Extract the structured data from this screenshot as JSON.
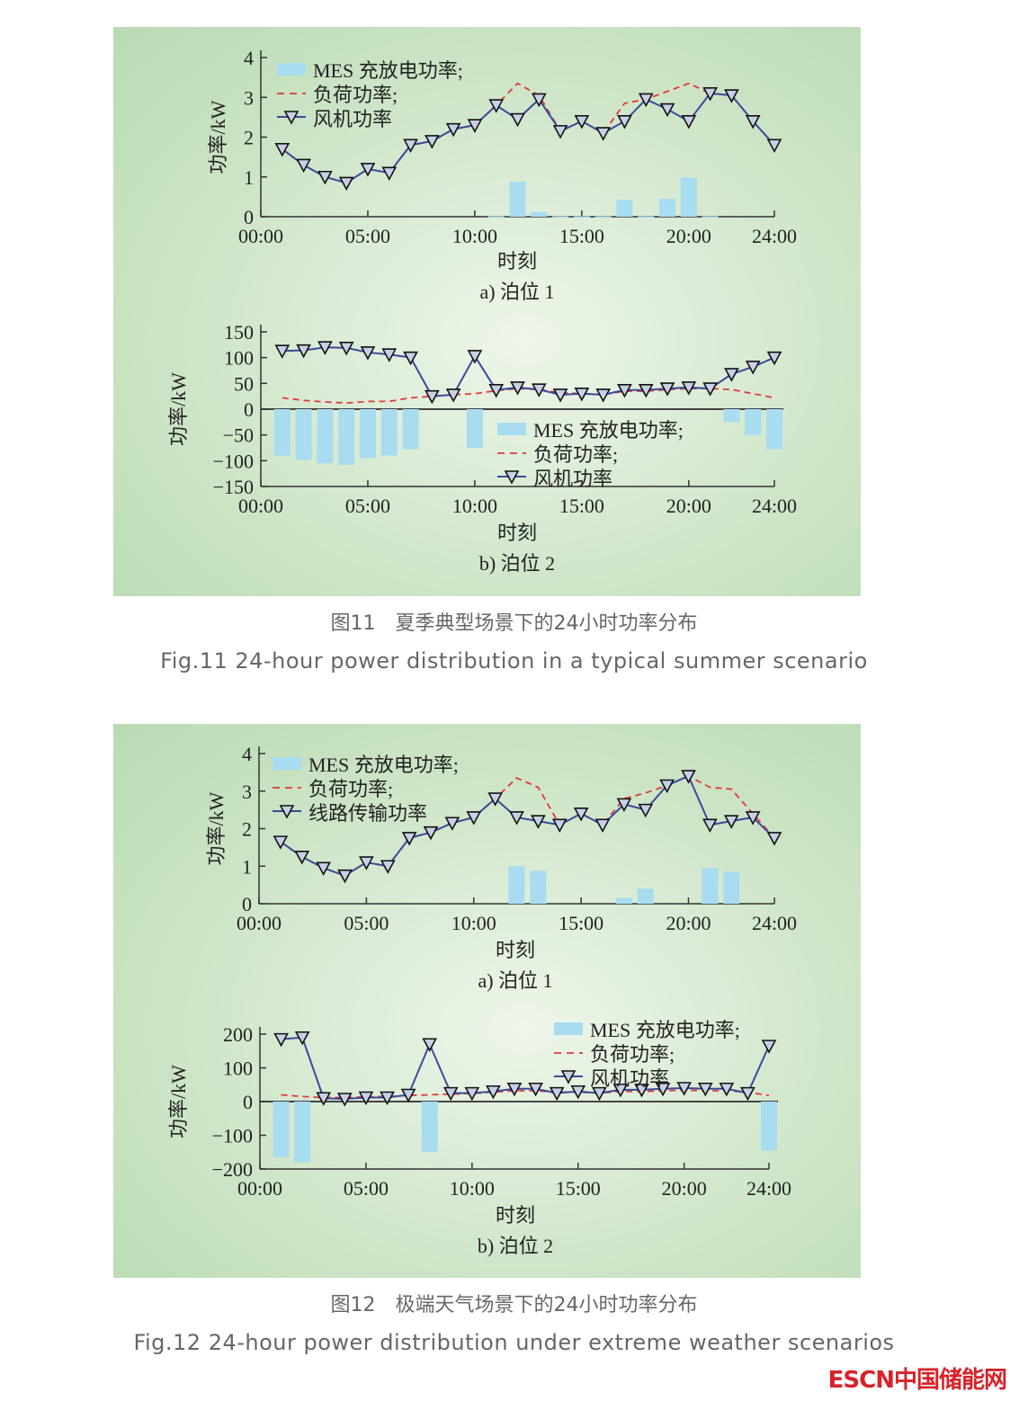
{
  "figures": [
    {
      "caption_cn": "图11　夏季典型场景下的24小时功率分布",
      "caption_en": "Fig.11  24-hour power distribution in a typical summer scenario"
    },
    {
      "caption_cn": "图12　极端天气场景下的24小时功率分布",
      "caption_en": "Fig.12  24-hour power distribution under extreme weather scenarios"
    }
  ],
  "logo": "ESCN中国储能网",
  "colors": {
    "bar": "#a8dcf0",
    "load": "#e03a3a",
    "line": "#3a4a9a",
    "marker_stroke": "#111111"
  },
  "chart_data": [
    {
      "type": "bar+line",
      "subtitle": "a) 泊位 1",
      "xlabel": "时刻",
      "ylabel": "功率/kW",
      "xticks": [
        "00:00",
        "05:00",
        "10:00",
        "15:00",
        "20:00",
        "24:00"
      ],
      "xtick_values": [
        0,
        5,
        10,
        15,
        20,
        24
      ],
      "ylim": [
        0,
        4
      ],
      "yticks": [
        0,
        1,
        2,
        3,
        4
      ],
      "ytick_labels": [
        "0",
        "1",
        "2",
        "3",
        "4"
      ],
      "legend": "top-left",
      "x": [
        1,
        2,
        3,
        4,
        5,
        6,
        7,
        8,
        9,
        10,
        11,
        12,
        13,
        14,
        15,
        16,
        17,
        18,
        19,
        20,
        21,
        22,
        23,
        24
      ],
      "series": [
        {
          "name": "MES 充放电功率;",
          "kind": "bar",
          "values": [
            0,
            0,
            0,
            0,
            0,
            0,
            0,
            0,
            0,
            0,
            0.01,
            0.88,
            0.12,
            0.01,
            0.01,
            0.01,
            0.42,
            0.01,
            0.45,
            0.98,
            0.01,
            0,
            0,
            0
          ]
        },
        {
          "name": "负荷功率;",
          "kind": "dashed",
          "values": [
            1.7,
            1.3,
            1.0,
            0.85,
            1.2,
            1.1,
            1.8,
            1.9,
            2.2,
            2.3,
            2.8,
            3.35,
            3.05,
            2.15,
            2.4,
            2.1,
            2.85,
            2.95,
            3.15,
            3.35,
            3.1,
            3.05,
            2.4,
            1.8
          ]
        },
        {
          "name": "风机功率",
          "kind": "line",
          "values": [
            1.7,
            1.3,
            1.0,
            0.85,
            1.2,
            1.1,
            1.8,
            1.9,
            2.2,
            2.3,
            2.8,
            2.45,
            2.95,
            2.15,
            2.4,
            2.1,
            2.4,
            2.95,
            2.7,
            2.4,
            3.1,
            3.05,
            2.4,
            1.8
          ]
        }
      ]
    },
    {
      "type": "bar+line",
      "subtitle": "b) 泊位 2",
      "xlabel": "时刻",
      "ylabel": "功率/kW",
      "xticks": [
        "00:00",
        "05:00",
        "10:00",
        "15:00",
        "20:00",
        "24:00"
      ],
      "xtick_values": [
        0,
        5,
        10,
        15,
        20,
        24
      ],
      "ylim": [
        -150,
        150
      ],
      "yticks": [
        -150,
        -100,
        -50,
        0,
        50,
        100,
        150
      ],
      "ytick_labels": [
        "−150",
        "−100",
        "−50",
        "0",
        "50",
        "100",
        "150"
      ],
      "legend": "bottom-center",
      "x": [
        1,
        2,
        3,
        4,
        5,
        6,
        7,
        8,
        9,
        10,
        11,
        12,
        13,
        14,
        15,
        16,
        17,
        18,
        19,
        20,
        21,
        22,
        23,
        24
      ],
      "series": [
        {
          "name": "MES 充放电功率;",
          "kind": "bar",
          "values": [
            -90,
            -98,
            -105,
            -108,
            -95,
            -90,
            -78,
            0,
            0,
            -75,
            0,
            0,
            0,
            0,
            0,
            0,
            0,
            0,
            0,
            0,
            0,
            -25,
            -50,
            -78
          ]
        },
        {
          "name": "负荷功率;",
          "kind": "dashed",
          "values": [
            22,
            17,
            14,
            12,
            15,
            15,
            22,
            25,
            28,
            30,
            36,
            40,
            38,
            32,
            30,
            28,
            35,
            35,
            38,
            40,
            40,
            38,
            30,
            22
          ]
        },
        {
          "name": "风机功率",
          "kind": "line",
          "values": [
            113,
            114,
            120,
            119,
            110,
            106,
            100,
            25,
            28,
            103,
            37,
            42,
            38,
            28,
            30,
            28,
            37,
            37,
            40,
            42,
            40,
            68,
            82,
            100
          ]
        }
      ]
    },
    {
      "type": "bar+line",
      "subtitle": "a) 泊位 1",
      "xlabel": "时刻",
      "ylabel": "功率/kW",
      "xticks": [
        "00:00",
        "05:00",
        "10:00",
        "15:00",
        "20:00",
        "24:00"
      ],
      "xtick_values": [
        0,
        5,
        10,
        15,
        20,
        24
      ],
      "ylim": [
        0,
        4
      ],
      "yticks": [
        0,
        1,
        2,
        3,
        4
      ],
      "ytick_labels": [
        "0",
        "1",
        "2",
        "3",
        "4"
      ],
      "legend": "top-left",
      "x": [
        1,
        2,
        3,
        4,
        5,
        6,
        7,
        8,
        9,
        10,
        11,
        12,
        13,
        14,
        15,
        16,
        17,
        18,
        19,
        20,
        21,
        22,
        23,
        24
      ],
      "series": [
        {
          "name": "MES 充放电功率;",
          "kind": "bar",
          "values": [
            0,
            0,
            0,
            0,
            0,
            0,
            0,
            0,
            0,
            0,
            0,
            1.0,
            0.88,
            0,
            0,
            0,
            0.15,
            0.4,
            0,
            0,
            0.95,
            0.85,
            0,
            0
          ]
        },
        {
          "name": "负荷功率;",
          "kind": "dashed",
          "values": [
            1.65,
            1.25,
            0.95,
            0.75,
            1.1,
            1.0,
            1.75,
            1.9,
            2.15,
            2.3,
            2.8,
            3.35,
            3.1,
            2.1,
            2.4,
            2.1,
            2.8,
            2.95,
            3.15,
            3.4,
            3.1,
            3.05,
            2.4,
            1.75
          ]
        },
        {
          "name": "线路传输功率",
          "kind": "line",
          "values": [
            1.65,
            1.25,
            0.95,
            0.75,
            1.1,
            1.0,
            1.75,
            1.9,
            2.15,
            2.3,
            2.8,
            2.3,
            2.2,
            2.1,
            2.4,
            2.1,
            2.65,
            2.5,
            3.15,
            3.4,
            2.1,
            2.2,
            2.3,
            1.75
          ]
        }
      ]
    },
    {
      "type": "bar+line",
      "subtitle": "b) 泊位 2",
      "xlabel": "时刻",
      "ylabel": "功率/kW",
      "xticks": [
        "00:00",
        "05:00",
        "10:00",
        "15:00",
        "20:00",
        "24:00"
      ],
      "xtick_values": [
        0,
        5,
        10,
        15,
        20,
        24
      ],
      "ylim": [
        -200,
        200
      ],
      "yticks": [
        -200,
        -100,
        0,
        100,
        200
      ],
      "ytick_labels": [
        "−200",
        "−100",
        "0",
        "100",
        "200"
      ],
      "legend": "top-right",
      "x": [
        1,
        2,
        3,
        4,
        5,
        6,
        7,
        8,
        9,
        10,
        11,
        12,
        13,
        14,
        15,
        16,
        17,
        18,
        19,
        20,
        21,
        22,
        23,
        24
      ],
      "series": [
        {
          "name": "MES 充放电功率;",
          "kind": "bar",
          "values": [
            -165,
            -180,
            0,
            0,
            0,
            0,
            0,
            -150,
            0,
            0,
            0,
            0,
            0,
            0,
            0,
            0,
            0,
            0,
            0,
            0,
            0,
            0,
            0,
            -145
          ]
        },
        {
          "name": "负荷功率;",
          "kind": "dashed",
          "values": [
            20,
            15,
            12,
            12,
            14,
            15,
            18,
            20,
            22,
            24,
            28,
            32,
            32,
            28,
            28,
            25,
            30,
            30,
            32,
            34,
            32,
            32,
            28,
            18
          ]
        },
        {
          "name": "风机功率",
          "kind": "line",
          "values": [
            185,
            190,
            10,
            8,
            12,
            12,
            20,
            170,
            25,
            25,
            30,
            38,
            38,
            25,
            30,
            25,
            35,
            35,
            38,
            40,
            38,
            38,
            25,
            165
          ]
        }
      ]
    }
  ]
}
